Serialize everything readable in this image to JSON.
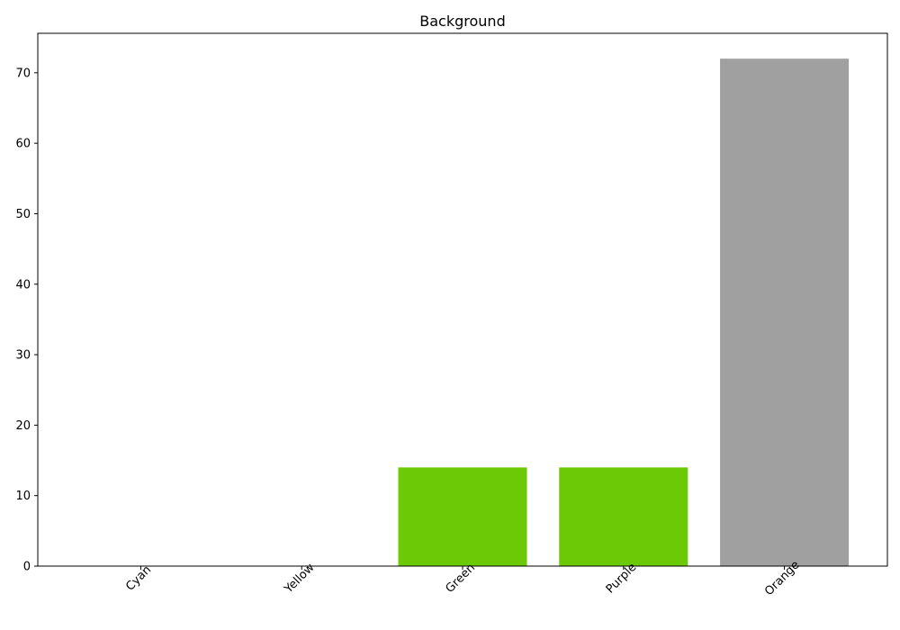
{
  "chart_data": {
    "type": "bar",
    "title": "Background",
    "xlabel": "",
    "ylabel": "",
    "categories": [
      "Cyan",
      "Yellow",
      "Green",
      "Purple",
      "Orange"
    ],
    "values": [
      0,
      0,
      14,
      14,
      72
    ],
    "bar_colors": [
      "#6cc905",
      "#6cc905",
      "#6cc905",
      "#6cc905",
      "#a0a0a0"
    ],
    "ylim": [
      0,
      75.6
    ],
    "yticks": [
      0,
      10,
      20,
      30,
      40,
      50,
      60,
      70
    ],
    "grid": false,
    "legend": "none",
    "x_tick_rotation_deg": 45
  }
}
